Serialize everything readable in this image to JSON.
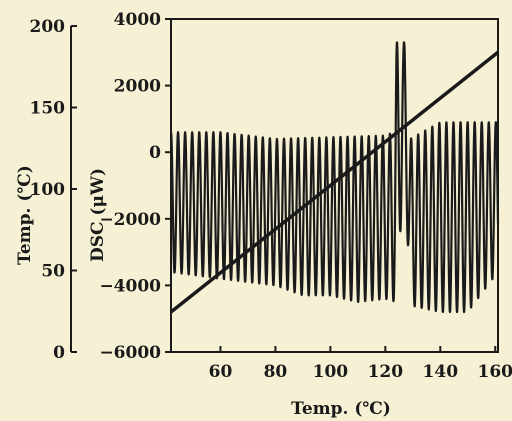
{
  "chart_data": {
    "type": "line",
    "xlabel": "Temp. (℃)",
    "y2label": "DSC (μW)",
    "y1label": "Temp. (℃)",
    "x_axis": {
      "range": [
        42,
        161
      ],
      "ticks": [
        60,
        80,
        100,
        120,
        140,
        160
      ]
    },
    "dsc_axis": {
      "range": [
        -6000,
        4000
      ],
      "ticks": [
        4000,
        2000,
        0,
        -2000,
        -4000,
        -6000
      ]
    },
    "temp_axis": {
      "range": [
        0,
        200
      ],
      "ticks": [
        200,
        150,
        100,
        50,
        0
      ]
    },
    "series": [
      {
        "type": "oscillating",
        "x_range": [
          42,
          161
        ],
        "period": 2.57,
        "upper_envelope": [
          [
            42,
            600
          ],
          [
            60,
            600
          ],
          [
            70,
            500
          ],
          [
            80,
            400
          ],
          [
            100,
            450
          ],
          [
            120,
            500
          ],
          [
            123,
            600
          ],
          [
            124,
            3300
          ],
          [
            127,
            3300
          ],
          [
            129,
            400
          ],
          [
            140,
            900
          ],
          [
            150,
            900
          ],
          [
            160,
            900
          ]
        ],
        "lower_envelope": [
          [
            42,
            -3600
          ],
          [
            60,
            -3800
          ],
          [
            80,
            -4000
          ],
          [
            90,
            -4300
          ],
          [
            100,
            -4300
          ],
          [
            110,
            -4500
          ],
          [
            120,
            -4400
          ],
          [
            124,
            -4500
          ],
          [
            127,
            -200
          ],
          [
            129,
            -4600
          ],
          [
            140,
            -4800
          ],
          [
            150,
            -4800
          ],
          [
            160,
            -3700
          ]
        ]
      },
      {
        "type": "linear",
        "values": [
          [
            42,
            -4800
          ],
          [
            161,
            3000
          ]
        ]
      }
    ]
  }
}
